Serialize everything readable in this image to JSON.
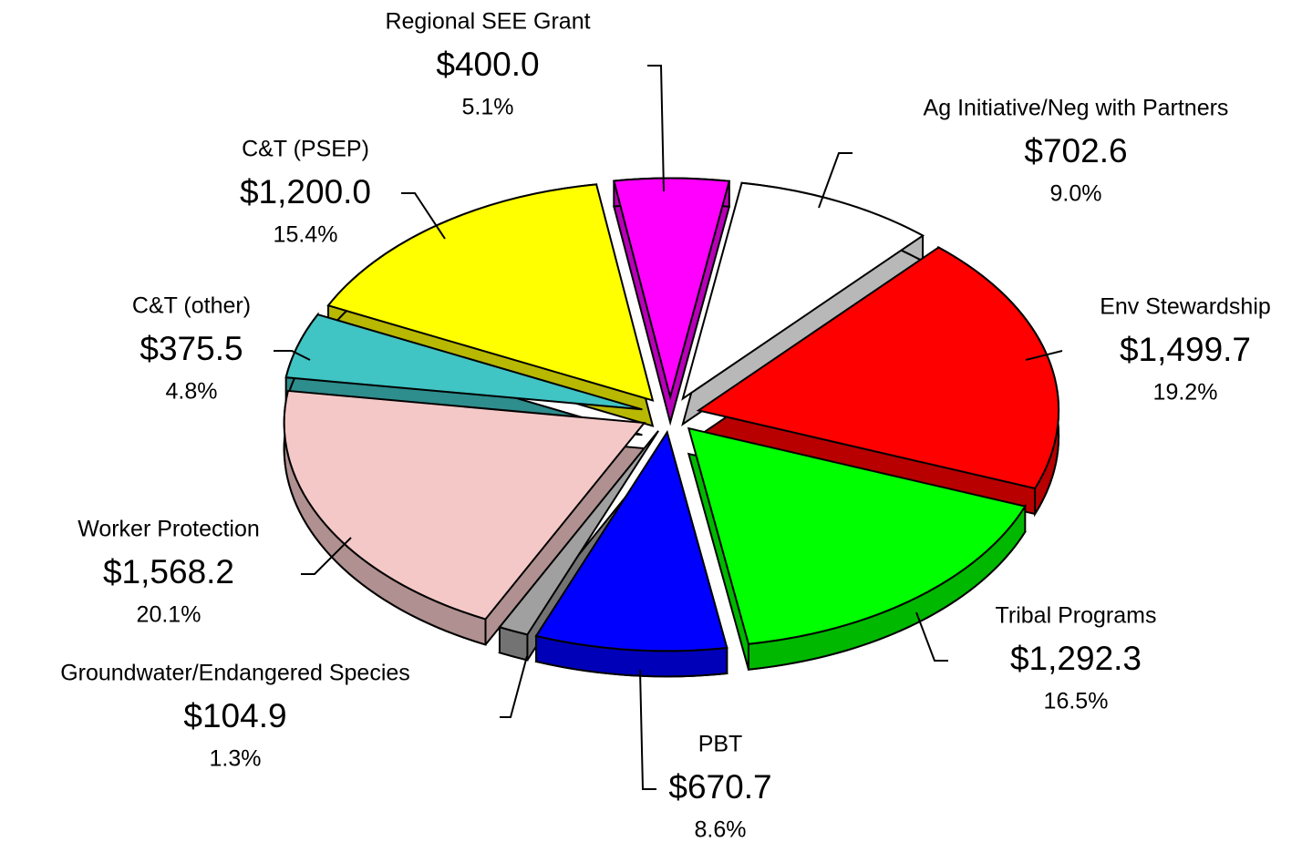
{
  "chart_data": {
    "type": "pie",
    "categories": [
      "Regional SEE Grant",
      "Ag Initiative/Neg with Partners",
      "Env Stewardship",
      "Tribal Programs",
      "PBT",
      "Groundwater/Endangered Species",
      "Worker Protection",
      "C&T (other)",
      "C&T (PSEP)"
    ],
    "values": [
      400.0,
      702.6,
      1499.7,
      1292.3,
      670.7,
      104.9,
      1568.2,
      375.5,
      1200.0
    ],
    "value_labels": [
      "$400.0",
      "$702.6",
      "$1,499.7",
      "$1,292.3",
      "$670.7",
      "$104.9",
      "$1,568.2",
      "$375.5",
      "$1,200.0"
    ],
    "percent_labels": [
      "5.1%",
      "9.0%",
      "19.2%",
      "16.5%",
      "8.6%",
      "1.3%",
      "20.1%",
      "4.8%",
      "15.4%"
    ],
    "colors": [
      "#ff00ff",
      "#ffffff",
      "#ff0000",
      "#00ff00",
      "#0000ff",
      "#a0a0a0",
      "#f5c8c8",
      "#40c4c4",
      "#ffff00"
    ]
  }
}
